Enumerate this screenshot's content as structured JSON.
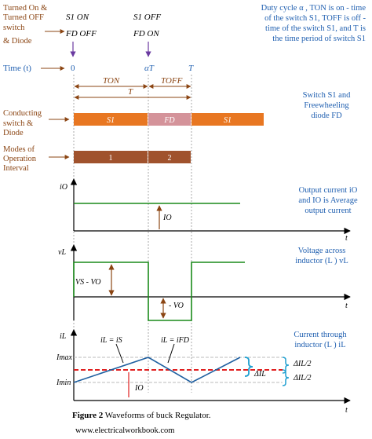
{
  "left_labels": {
    "switch_state": [
      "Turned On &",
      "Turned OFF",
      "switch",
      "& Diode"
    ],
    "time": "Time (t)",
    "conducting": [
      "Conducting",
      "switch &",
      "Diode"
    ],
    "modes": [
      "Modes of",
      "Operation",
      "Interval"
    ]
  },
  "top_states": {
    "on_switch": "S1 ON",
    "on_diode": "FD  OFF",
    "off_switch": "S1 OFF",
    "off_diode": "FD  ON"
  },
  "time_markers": {
    "zero": "0",
    "alphaT": "αT",
    "T": "T"
  },
  "intervals": {
    "ton": "TON",
    "toff": "TOFF",
    "period": "T"
  },
  "conducting_bars": [
    {
      "label": "S1",
      "color": "#E87722"
    },
    {
      "label": "FD",
      "color": "#D4939A"
    },
    {
      "label": "S1",
      "color": "#E87722"
    }
  ],
  "mode_bars": [
    {
      "label": "1",
      "color": "#A0522D"
    },
    {
      "label": "2",
      "color": "#A0522D"
    }
  ],
  "right_notes": {
    "duty": [
      "Duty cycle α , TON is on - time",
      "of the switch S1, TOFF is off -",
      "time of the switch S1, and T is",
      "the time period of switch S1"
    ],
    "switch_fd": [
      "Switch S1 and",
      "Freewheeling",
      "diode FD"
    ],
    "output_current": [
      "Output current iO",
      "and IO is Average",
      "output current"
    ],
    "voltage": [
      "Voltage across",
      "inductor (L ) vL"
    ],
    "current": [
      "Current through",
      "inductor (L ) iL"
    ]
  },
  "plots": {
    "io": {
      "axis": "iO",
      "t": "t",
      "avg": "IO"
    },
    "vl": {
      "axis": "vL",
      "t": "t",
      "pos": "VS - VO",
      "neg": "- VO"
    },
    "il": {
      "axis": "iL",
      "t": "t",
      "imax": "Imax",
      "imin": "Imin",
      "avg": "IO",
      "is": "iL = iS",
      "ifd": "iL = iFD",
      "dhalf1": "ΔIL/2",
      "dhalf2": "ΔIL/2",
      "dfull": "ΔIL"
    }
  },
  "caption": {
    "bold": "Figure 2",
    "text": " Waveforms of buck Regulator."
  },
  "footer": "www.electricalworkbook.com",
  "colors": {
    "brown": "#8B4513",
    "blue": "#1f5fb0",
    "green": "#1a8a1a",
    "red": "#e02020"
  }
}
